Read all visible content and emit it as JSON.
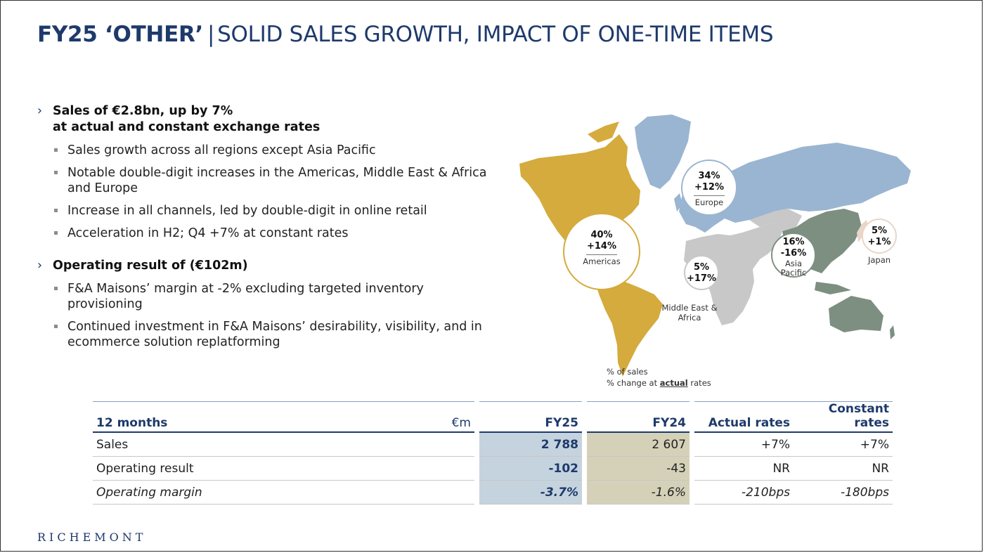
{
  "title": {
    "bold": "FY25 ‘OTHER’",
    "separator": "|",
    "rest": "SOLID SALES GROWTH, IMPACT OF ONE-TIME ITEMS"
  },
  "bullets": [
    {
      "heading_line1": "Sales of €2.8bn, up by 7%",
      "heading_line2": "at actual and constant exchange rates",
      "items": [
        "Sales growth across all regions except Asia Pacific",
        "Notable double-digit increases in the Americas, Middle East & Africa and Europe",
        "Increase in all channels, led by double-digit in online retail",
        "Acceleration in H2; Q4 +7% at constant rates"
      ]
    },
    {
      "heading_line1": "Operating result of (€102m)",
      "items": [
        "F&A Maisons’ margin at -2% excluding targeted inventory provisioning",
        "Continued investment in F&A Maisons’ desirability, visibility, and in ecommerce solution replatforming"
      ]
    }
  ],
  "map": {
    "regions": {
      "americas": {
        "share": "40%",
        "change": "+14%",
        "name": "Americas",
        "color": "#d4ab3c"
      },
      "europe": {
        "share": "34%",
        "change": "+12%",
        "name": "Europe",
        "color": "#9ab5d1"
      },
      "mea": {
        "share": "5%",
        "change": "+17%",
        "name": "Middle East & Africa",
        "color": "#c8c8c8"
      },
      "asia": {
        "share": "16%",
        "change": "-16%",
        "name": "Asia Pacific",
        "color": "#7d8f80"
      },
      "japan": {
        "share": "5%",
        "change": "+1%",
        "name": "Japan",
        "color": "#e8d6c8"
      }
    },
    "legend_line1": "% of sales",
    "legend_line2_pre": "% change at ",
    "legend_line2_em": "actual",
    "legend_line2_post": " rates"
  },
  "table": {
    "header": {
      "label": "12 months",
      "unit": "€m",
      "fy25": "FY25",
      "fy24": "FY24",
      "actual": "Actual rates",
      "constant": "Constant rates"
    },
    "rows": [
      {
        "label": "Sales",
        "fy25": "2 788",
        "fy24": "2 607",
        "actual": "+7%",
        "constant": "+7%"
      },
      {
        "label": "Operating result",
        "fy25": "-102",
        "fy24": "-43",
        "actual": "NR",
        "constant": "NR"
      },
      {
        "label": "Operating margin",
        "fy25": "-3.7%",
        "fy24": "-1.6%",
        "actual": "-210bps",
        "constant": "-180bps"
      }
    ]
  },
  "logo": "RICHEMONT"
}
